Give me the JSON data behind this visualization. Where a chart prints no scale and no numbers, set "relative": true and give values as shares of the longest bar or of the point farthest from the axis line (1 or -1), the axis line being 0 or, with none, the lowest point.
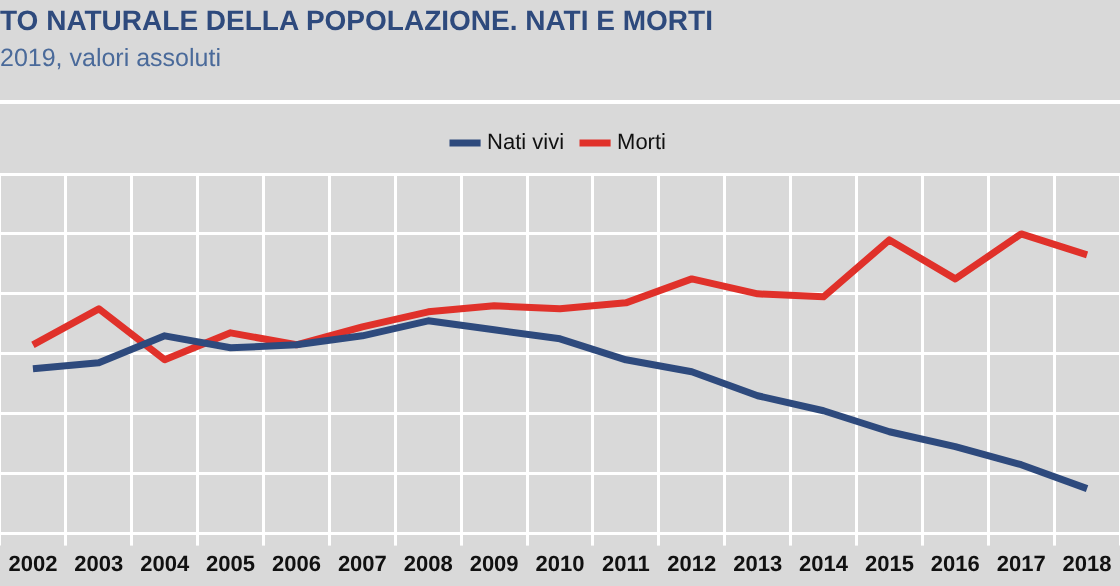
{
  "chart_data": {
    "type": "line",
    "title": "TO NATURALE DELLA POPOLAZIONE. NATI E MORTI",
    "subtitle": "2019, valori assoluti",
    "relative": true,
    "grid": true,
    "legend": "top",
    "marker": "none",
    "categories": [
      "2002",
      "2003",
      "2004",
      "2005",
      "2006",
      "2007",
      "2008",
      "2009",
      "2010",
      "2011",
      "2012",
      "2013",
      "2014",
      "2015",
      "2016",
      "2017",
      "2018"
    ],
    "series": [
      {
        "name": "Nati vivi",
        "color": "#2e4a7d",
        "values": [
          0.55,
          0.57,
          0.66,
          0.62,
          0.63,
          0.66,
          0.71,
          0.68,
          0.65,
          0.58,
          0.54,
          0.46,
          0.41,
          0.34,
          0.29,
          0.23,
          0.15
        ]
      },
      {
        "name": "Morti",
        "color": "#e0312a",
        "values": [
          0.63,
          0.75,
          0.58,
          0.67,
          0.63,
          0.69,
          0.74,
          0.76,
          0.75,
          0.77,
          0.85,
          0.8,
          0.79,
          0.98,
          0.85,
          1,
          0.93
        ]
      }
    ]
  }
}
